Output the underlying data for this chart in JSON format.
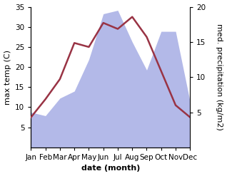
{
  "months": [
    "Jan",
    "Feb",
    "Mar",
    "Apr",
    "May",
    "Jun",
    "Jul",
    "Aug",
    "Sep",
    "Oct",
    "Nov",
    "Dec"
  ],
  "temperature": [
    7.5,
    12.0,
    17.0,
    26.0,
    25.0,
    31.0,
    29.5,
    32.5,
    27.5,
    19.0,
    10.5,
    7.5
  ],
  "precipitation": [
    5.0,
    4.5,
    7.0,
    8.0,
    12.5,
    19.0,
    19.5,
    15.0,
    11.0,
    16.5,
    16.5,
    6.5
  ],
  "temp_color": "#993344",
  "precip_color_fill": "#b3b9e8",
  "temp_ylim": [
    0,
    35
  ],
  "precip_ylim": [
    0,
    20
  ],
  "temp_yticks": [
    5,
    10,
    15,
    20,
    25,
    30,
    35
  ],
  "precip_yticks": [
    5,
    10,
    15,
    20
  ],
  "xlabel": "date (month)",
  "ylabel_left": "max temp (C)",
  "ylabel_right": "med. precipitation (kg/m2)",
  "bg_color": "#ffffff",
  "label_fontsize": 8,
  "tick_fontsize": 7.5
}
